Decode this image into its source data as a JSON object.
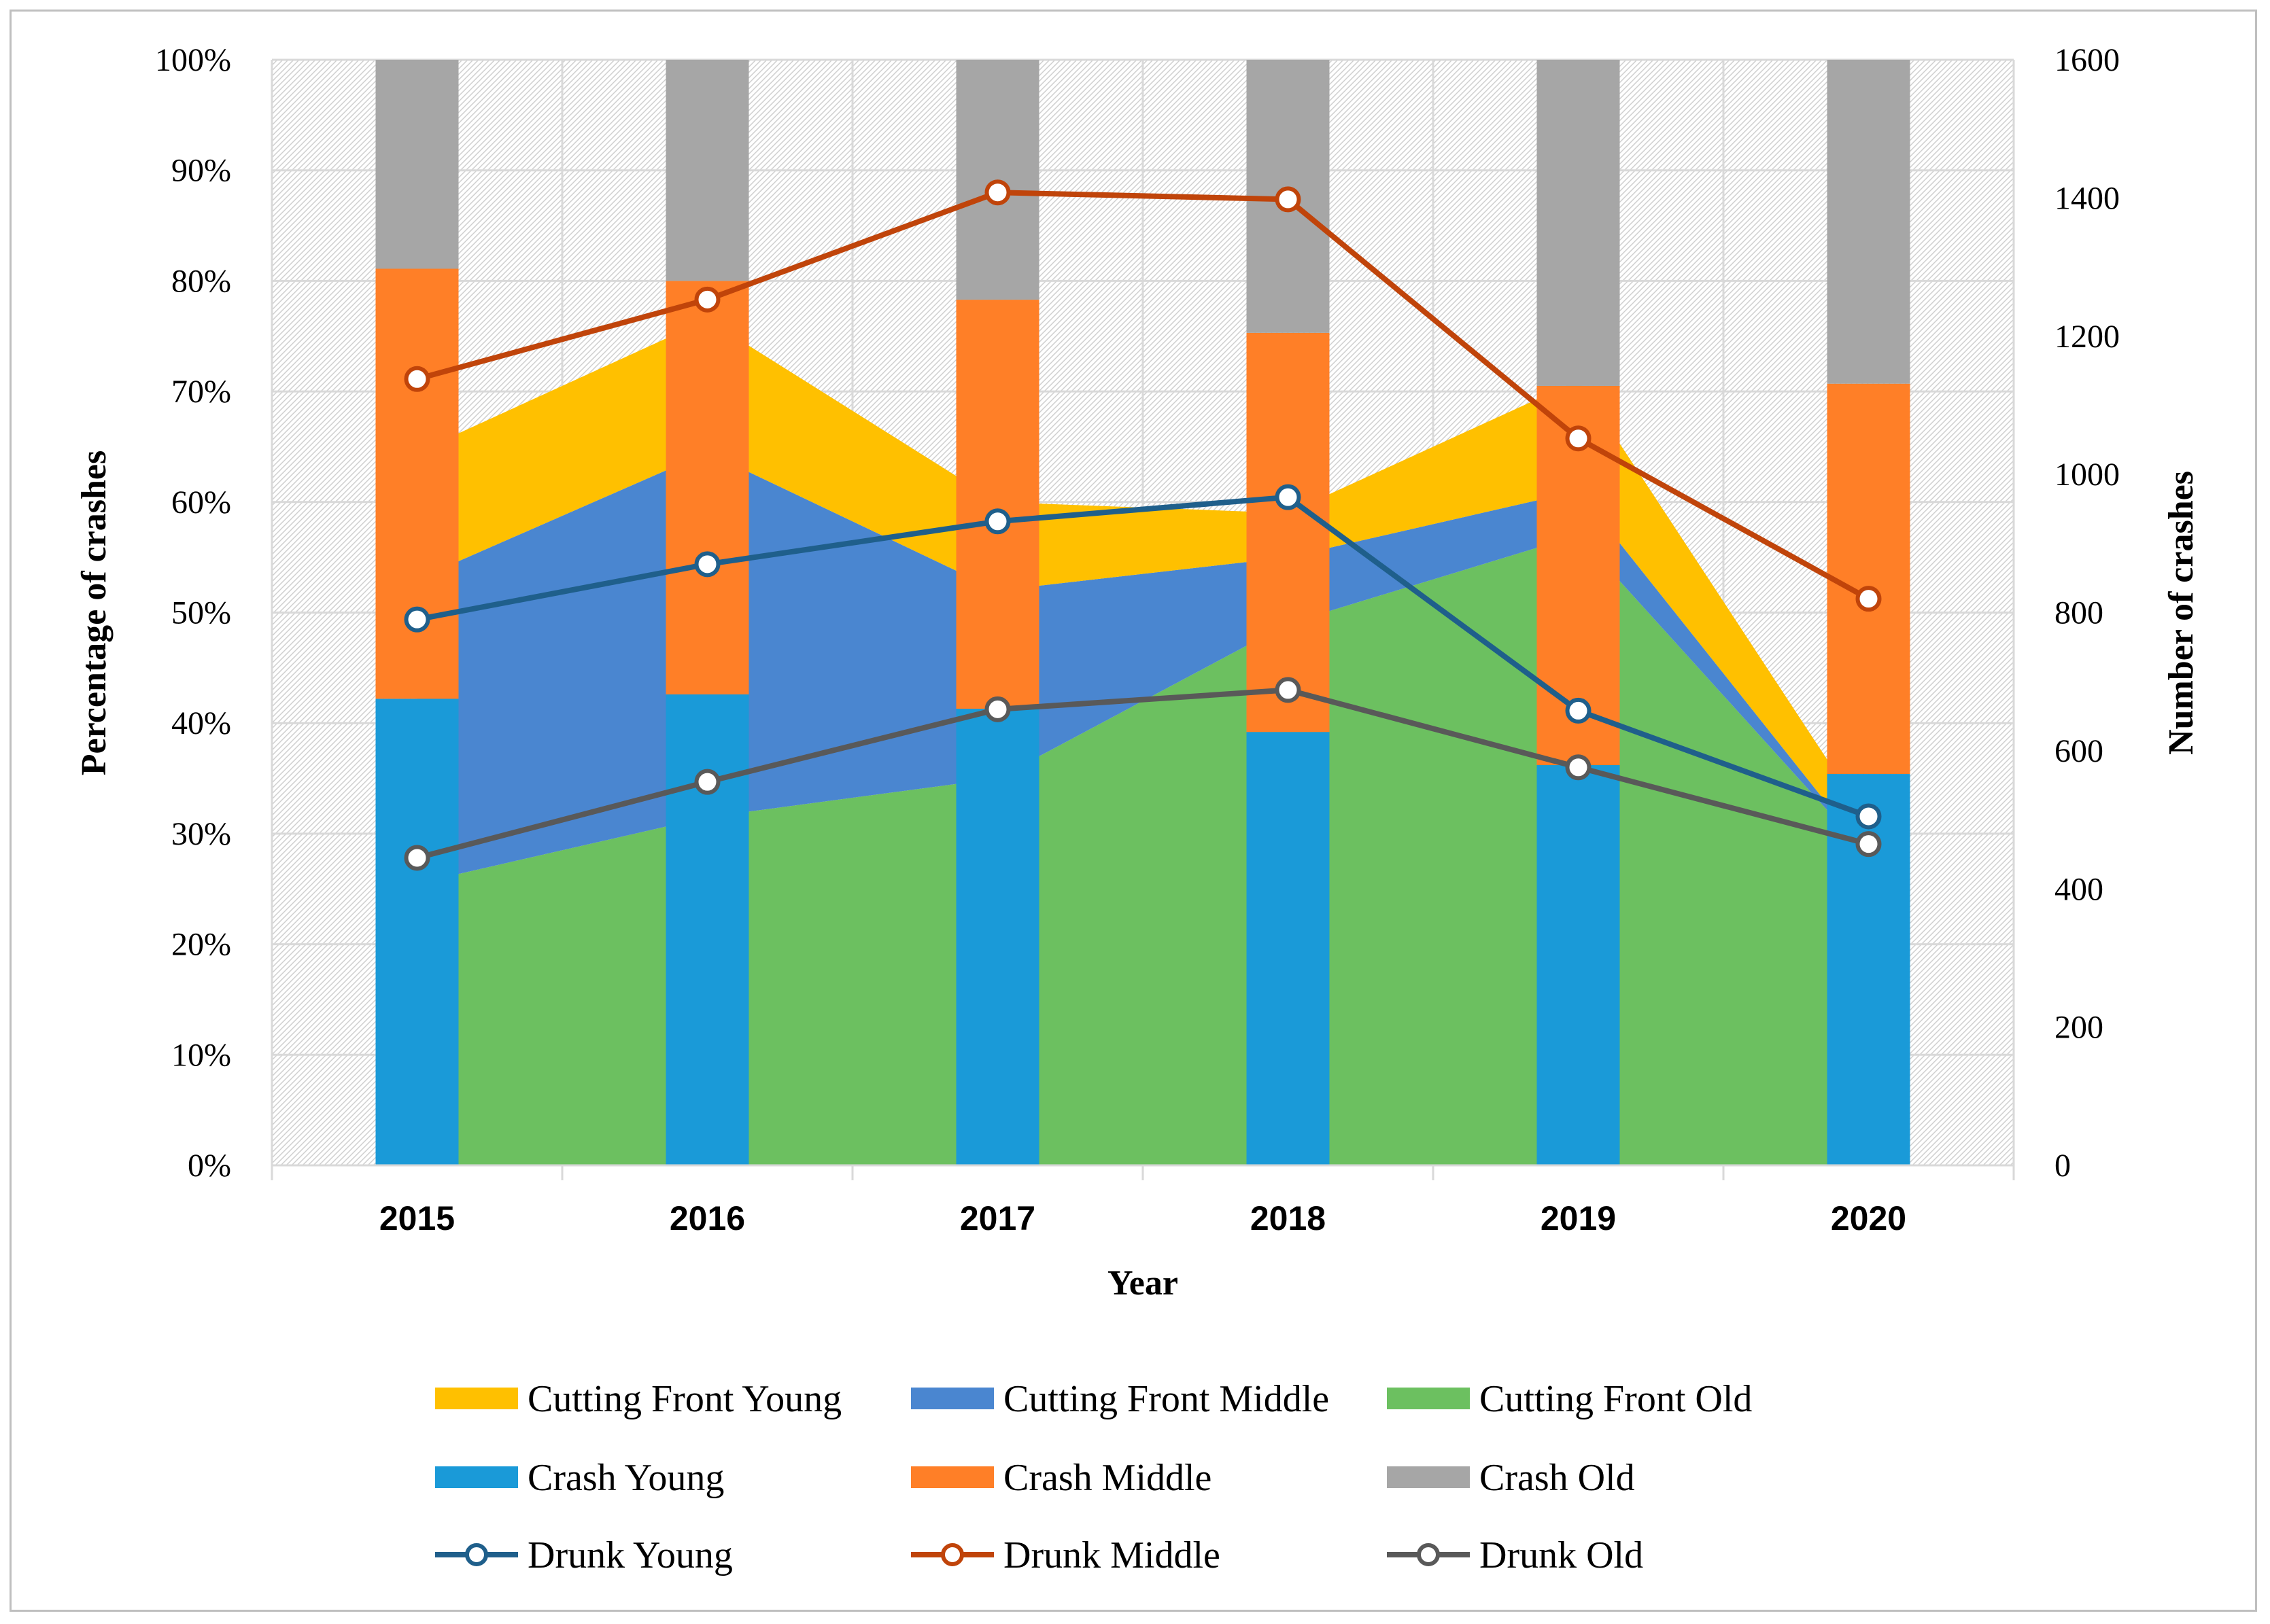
{
  "chart_data": {
    "type": "bar",
    "title": "",
    "xlabel": "Year",
    "ylabel": "Percentage of crashes",
    "y2label": "Number of crashes",
    "categories": [
      "2015",
      "2016",
      "2017",
      "2018",
      "2019",
      "2020"
    ],
    "ylim": [
      0,
      100
    ],
    "y2lim": [
      0,
      1600
    ],
    "y_ticks": [
      "0%",
      "10%",
      "20%",
      "30%",
      "40%",
      "50%",
      "60%",
      "70%",
      "80%",
      "90%",
      "100%"
    ],
    "y2_ticks": [
      "0",
      "200",
      "400",
      "600",
      "800",
      "1000",
      "1200",
      "1400",
      "1600"
    ],
    "grid": true,
    "legend_position": "bottom",
    "area_series": [
      {
        "name": "Cutting Front Young",
        "color": "#FFC000",
        "values": [
          11.5,
          12,
          8,
          4,
          10,
          3
        ]
      },
      {
        "name": "Cutting Front Middle",
        "color": "#4A86D0",
        "values": [
          27.5,
          33,
          17,
          6,
          4,
          0
        ]
      },
      {
        "name": "Cutting Front Old",
        "color": "#6CC060",
        "values": [
          25.5,
          31.5,
          35,
          49,
          57,
          28
        ]
      }
    ],
    "bar_series": [
      {
        "name": "Crash Young",
        "color": "#1A9AD8",
        "values": [
          42.2,
          42.6,
          41.3,
          39.2,
          36.2,
          35.4
        ]
      },
      {
        "name": "Crash Middle",
        "color": "#FF7F27",
        "values": [
          38.9,
          37.4,
          37.0,
          36.1,
          34.3,
          35.3
        ]
      },
      {
        "name": "Crash Old",
        "color": "#A6A6A6",
        "values": [
          18.9,
          20.0,
          21.7,
          24.7,
          29.5,
          29.3
        ]
      }
    ],
    "line_series": [
      {
        "name": "Drunk Young",
        "color": "#1F5F8B",
        "axis": "secondary",
        "values": [
          790,
          870,
          932,
          967,
          658,
          505
        ]
      },
      {
        "name": "Drunk Middle",
        "color": "#C0440A",
        "axis": "secondary",
        "values": [
          1138,
          1253,
          1408,
          1398,
          1052,
          820
        ]
      },
      {
        "name": "Drunk Old",
        "color": "#595959",
        "axis": "secondary",
        "values": [
          445,
          555,
          660,
          688,
          576,
          465
        ]
      }
    ]
  }
}
